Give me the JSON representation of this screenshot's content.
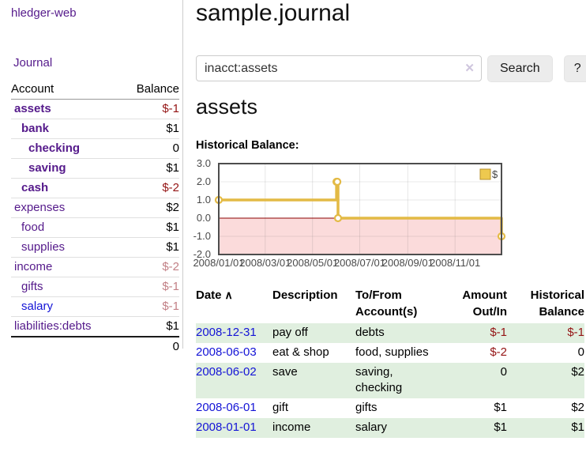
{
  "sidebar": {
    "brand": "hledger-web",
    "journal_link": "Journal",
    "accounts_table": {
      "header_account": "Account",
      "header_balance": "Balance",
      "accounts": [
        {
          "name": "assets",
          "balance": "$-1"
        },
        {
          "name": "bank",
          "balance": "$1"
        },
        {
          "name": "checking",
          "balance": "0"
        },
        {
          "name": "saving",
          "balance": "$1"
        },
        {
          "name": "cash",
          "balance": "$-2"
        },
        {
          "name": "expenses",
          "balance": "$2"
        },
        {
          "name": "food",
          "balance": "$1"
        },
        {
          "name": "supplies",
          "balance": "$1"
        },
        {
          "name": "income",
          "balance": "$-2"
        },
        {
          "name": "gifts",
          "balance": "$-1"
        },
        {
          "name": "salary",
          "balance": "$-1"
        },
        {
          "name": "liabilities:debts",
          "balance": "$1"
        }
      ],
      "total": "0"
    }
  },
  "header": {
    "title": "sample.journal"
  },
  "search": {
    "value": "inacct:assets",
    "button_label": "Search",
    "help_label": "?"
  },
  "icons": {
    "clear": "✕",
    "sort_asc": "∧"
  },
  "account_page": {
    "title": "assets",
    "chart_label": "Historical Balance:"
  },
  "chart_data": {
    "type": "line",
    "step": true,
    "title": "Historical Balance",
    "x_type": "date",
    "x_range": [
      "2008-01-01",
      "2008-12-31"
    ],
    "ylim": [
      -2,
      3
    ],
    "yticks": [
      "3.0",
      "2.0",
      "1.0",
      "0.0",
      "-1.0",
      "-2.0"
    ],
    "ytick_values": [
      3,
      2,
      1,
      0,
      -1,
      -2
    ],
    "xticks": [
      {
        "label": "2008/01/01",
        "date": "2008-01-01"
      },
      {
        "label": "2008/03/01",
        "date": "2008-03-01"
      },
      {
        "label": "2008/05/01",
        "date": "2008-05-01"
      },
      {
        "label": "2008/07/01",
        "date": "2008-07-01"
      },
      {
        "label": "2008/09/01",
        "date": "2008-09-01"
      },
      {
        "label": "2008/11/01",
        "date": "2008-11-01"
      }
    ],
    "series": [
      {
        "name": "$",
        "color": "#e3ba45",
        "points": [
          {
            "date": "2008-01-01",
            "value": 1
          },
          {
            "date": "2008-06-01",
            "value": 2
          },
          {
            "date": "2008-06-02",
            "value": 2
          },
          {
            "date": "2008-06-03",
            "value": 0
          },
          {
            "date": "2008-12-31",
            "value": -1
          }
        ]
      }
    ],
    "legend": {
      "position": "top-right",
      "entries": [
        {
          "label": "$",
          "color": "#eec94f"
        }
      ]
    },
    "grid": true,
    "negative_area_color": "#fbdbdb",
    "zero_line_color": "#8b0000",
    "border_color": "#4d4d4d"
  },
  "transactions": {
    "headers": {
      "date": "Date",
      "description": "Description",
      "accounts": "To/From Account(s)",
      "amount": "Amount Out/In",
      "balance": "Historical Balance"
    },
    "rows": [
      {
        "date": "2008-12-31",
        "description": "pay off",
        "accounts": "debts",
        "amount": "$-1",
        "balance": "$-1"
      },
      {
        "date": "2008-06-03",
        "description": "eat & shop",
        "accounts": "food, supplies",
        "amount": "$-2",
        "balance": "0"
      },
      {
        "date": "2008-06-02",
        "description": "save",
        "accounts": "saving, checking",
        "amount": "0",
        "balance": "$2"
      },
      {
        "date": "2008-06-01",
        "description": "gift",
        "accounts": "gifts",
        "amount": "$1",
        "balance": "$2"
      },
      {
        "date": "2008-01-01",
        "description": "income",
        "accounts": "salary",
        "amount": "$1",
        "balance": "$1"
      }
    ]
  },
  "colors": {
    "brand_purple": "#551a8b",
    "link_blue": "#1414d6",
    "negative_dark": "#941414",
    "negative_pale": "#c28086",
    "row_green": "#e0efdf",
    "chart_line": "#e3ba45",
    "chart_negative_fill": "#fbdbdb"
  }
}
